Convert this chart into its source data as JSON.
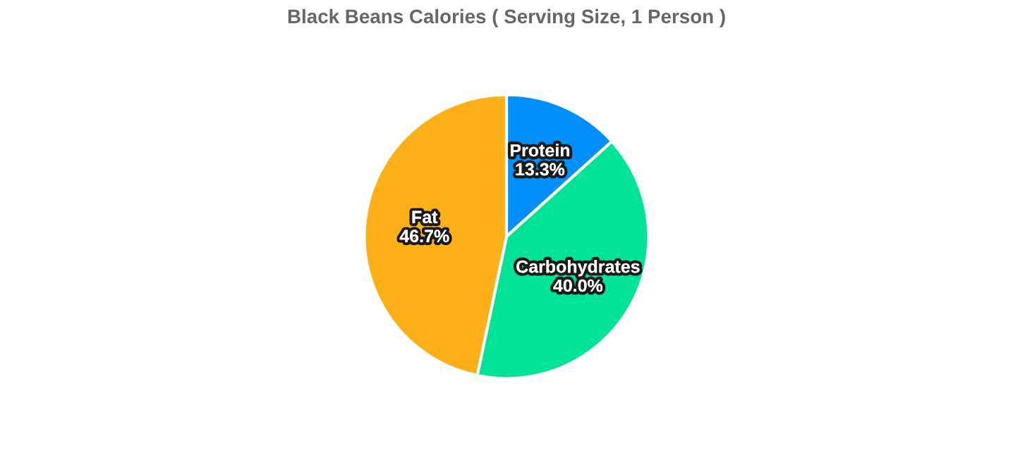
{
  "chart_data": {
    "type": "pie",
    "title": "Black Beans Calories ( Serving Size, 1 Person )",
    "categories": [
      "Protein",
      "Carbohydrates",
      "Fat"
    ],
    "values": [
      13.3,
      40.0,
      46.7
    ],
    "colors": [
      "#008ffb",
      "#00e396",
      "#feb019"
    ],
    "value_labels": [
      "13.3%",
      "40.0%",
      "46.7%"
    ],
    "legend": false
  }
}
